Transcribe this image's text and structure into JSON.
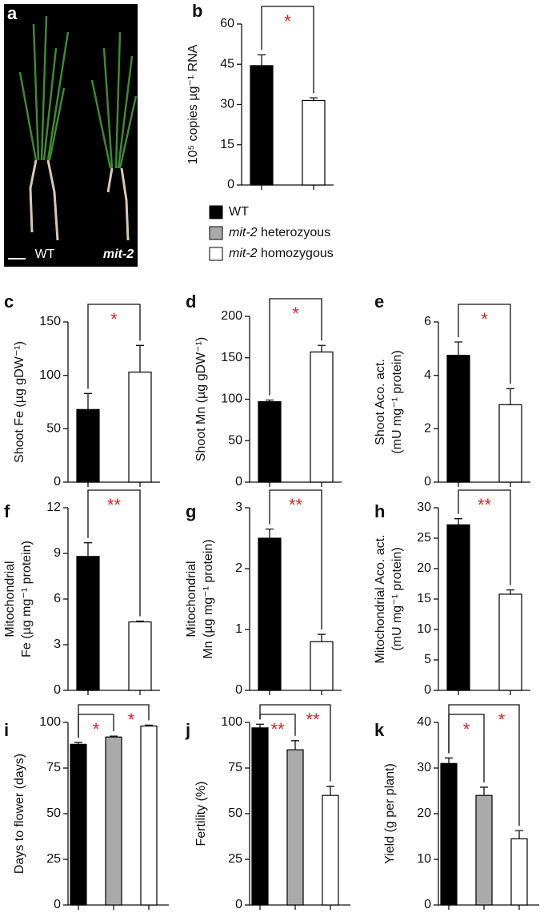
{
  "photo": {
    "panel": "a",
    "labels": [
      "WT",
      "mit-2"
    ]
  },
  "legend": [
    {
      "text": "WT",
      "color": "#000000"
    },
    {
      "italic": "mit-2",
      "text": "heterozyous",
      "color": "#aaaaaa"
    },
    {
      "italic": "mit-2",
      "text": "homozygous",
      "color": "#ffffff"
    }
  ],
  "chart_data": [
    {
      "type": "bar",
      "panel": "b",
      "ylabel": [
        "10⁵ copies µg⁻¹ RNA"
      ],
      "categories": [
        null,
        null
      ],
      "values": [
        44.5,
        31.5
      ],
      "errors": [
        4,
        1
      ],
      "colors": [
        "#000000",
        "#ffffff"
      ],
      "ylim": [
        0,
        60
      ],
      "yticks": [
        0,
        15,
        30,
        45,
        60
      ],
      "brackets": [
        {
          "from": 0,
          "to": 1,
          "label": "*"
        }
      ]
    },
    {
      "type": "bar",
      "panel": "c",
      "ylabel": [
        "Shoot Fe (µg gDW⁻¹)"
      ],
      "categories": [
        null,
        null
      ],
      "values": [
        68,
        103
      ],
      "errors": [
        15,
        25
      ],
      "colors": [
        "#000000",
        "#ffffff"
      ],
      "ylim": [
        0,
        150
      ],
      "yticks": [
        0,
        50,
        100,
        150
      ],
      "brackets": [
        {
          "from": 0,
          "to": 1,
          "label": "*"
        }
      ]
    },
    {
      "type": "bar",
      "panel": "d",
      "ylabel": [
        "Shoot Mn (µg gDW⁻¹)"
      ],
      "categories": [
        null,
        null
      ],
      "values": [
        97,
        157
      ],
      "errors": [
        2,
        8
      ],
      "colors": [
        "#000000",
        "#ffffff"
      ],
      "ylim": [
        0,
        200
      ],
      "yticks": [
        0,
        50,
        100,
        150,
        200
      ],
      "brackets": [
        {
          "from": 0,
          "to": 1,
          "label": "*"
        }
      ]
    },
    {
      "type": "bar",
      "panel": "e",
      "ylabel": [
        "Shoot Aco. act.",
        "(mU mg⁻¹ protein)"
      ],
      "categories": [
        null,
        null
      ],
      "values": [
        4.75,
        2.9
      ],
      "errors": [
        0.5,
        0.6
      ],
      "colors": [
        "#000000",
        "#ffffff"
      ],
      "ylim": [
        0,
        6
      ],
      "yticks": [
        0,
        2,
        4,
        6
      ],
      "brackets": [
        {
          "from": 0,
          "to": 1,
          "label": "*"
        }
      ]
    },
    {
      "type": "bar",
      "panel": "f",
      "ylabel": [
        "Mitochondrial",
        "Fe (µg mg⁻¹ protein)"
      ],
      "categories": [
        null,
        null
      ],
      "values": [
        8.8,
        4.5
      ],
      "errors": [
        0.9,
        0.05
      ],
      "colors": [
        "#000000",
        "#ffffff"
      ],
      "ylim": [
        0,
        12
      ],
      "yticks": [
        0,
        3,
        6,
        9,
        12
      ],
      "brackets": [
        {
          "from": 0,
          "to": 1,
          "label": "**"
        }
      ]
    },
    {
      "type": "bar",
      "panel": "g",
      "ylabel": [
        "Mitochondrial",
        "Mn (µg mg⁻¹ protein)"
      ],
      "categories": [
        null,
        null
      ],
      "values": [
        2.5,
        0.8
      ],
      "errors": [
        0.15,
        0.12
      ],
      "colors": [
        "#000000",
        "#ffffff"
      ],
      "ylim": [
        0,
        3
      ],
      "yticks": [
        0,
        1,
        2,
        3
      ],
      "brackets": [
        {
          "from": 0,
          "to": 1,
          "label": "**"
        }
      ]
    },
    {
      "type": "bar",
      "panel": "h",
      "ylabel": [
        "Mitochondrial Aco. act.",
        "(mU mg⁻¹ protein)"
      ],
      "categories": [
        null,
        null
      ],
      "values": [
        27.2,
        15.8
      ],
      "errors": [
        1,
        0.7
      ],
      "colors": [
        "#000000",
        "#ffffff"
      ],
      "ylim": [
        0,
        30
      ],
      "yticks": [
        0,
        5,
        10,
        15,
        20,
        25,
        30
      ],
      "brackets": [
        {
          "from": 0,
          "to": 1,
          "label": "**"
        }
      ]
    },
    {
      "type": "bar",
      "panel": "i",
      "ylabel": [
        "Days to flower (days)"
      ],
      "categories": [
        null,
        null,
        null
      ],
      "values": [
        88,
        92,
        98
      ],
      "errors": [
        1,
        0.5,
        0.5
      ],
      "colors": [
        "#000000",
        "#aaaaaa",
        "#ffffff"
      ],
      "ylim": [
        0,
        100
      ],
      "yticks": [
        0,
        25,
        50,
        75,
        100
      ],
      "brackets": [
        {
          "from": 0,
          "to": 1,
          "label": "*"
        },
        {
          "from": 0,
          "to": 2,
          "label": "*"
        }
      ]
    },
    {
      "type": "bar",
      "panel": "j",
      "ylabel": [
        "Fertility (%)"
      ],
      "categories": [
        null,
        null,
        null
      ],
      "values": [
        97,
        85,
        60
      ],
      "errors": [
        2,
        5,
        5
      ],
      "colors": [
        "#000000",
        "#aaaaaa",
        "#ffffff"
      ],
      "ylim": [
        0,
        100
      ],
      "yticks": [
        0,
        25,
        50,
        75,
        100
      ],
      "brackets": [
        {
          "from": 0,
          "to": 1,
          "label": "**"
        },
        {
          "from": 0,
          "to": 2,
          "label": "**"
        }
      ]
    },
    {
      "type": "bar",
      "panel": "k",
      "ylabel": [
        "Yield (g per plant)"
      ],
      "categories": [
        null,
        null,
        null
      ],
      "values": [
        31,
        24,
        14.5
      ],
      "errors": [
        1.2,
        1.8,
        1.8
      ],
      "colors": [
        "#000000",
        "#aaaaaa",
        "#ffffff"
      ],
      "ylim": [
        0,
        40
      ],
      "yticks": [
        0,
        10,
        20,
        30,
        40
      ],
      "brackets": [
        {
          "from": 0,
          "to": 1,
          "label": "*"
        },
        {
          "from": 0,
          "to": 2,
          "label": "*"
        }
      ]
    }
  ]
}
